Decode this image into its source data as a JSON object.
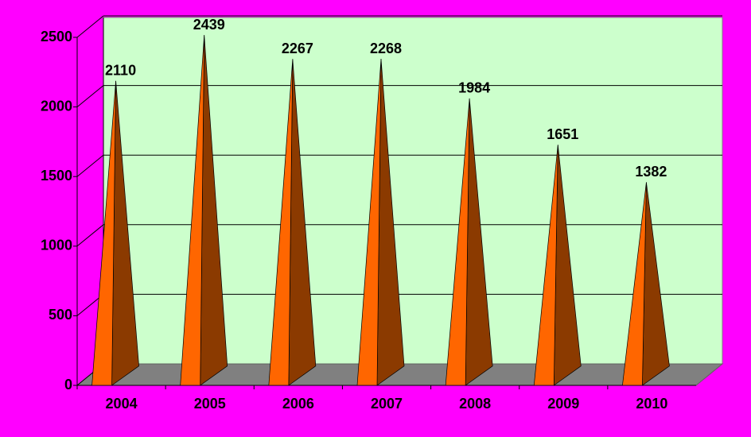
{
  "chart_data": {
    "type": "bar",
    "categories": [
      "2004",
      "2005",
      "2006",
      "2007",
      "2008",
      "2009",
      "2010"
    ],
    "values": [
      2110,
      2439,
      2267,
      2268,
      1984,
      1651,
      1382
    ],
    "color": "#ff6600",
    "ylim": [
      0,
      2500
    ],
    "yticks": [
      0,
      500,
      1000,
      1500,
      2000,
      2500
    ],
    "grid": true
  }
}
